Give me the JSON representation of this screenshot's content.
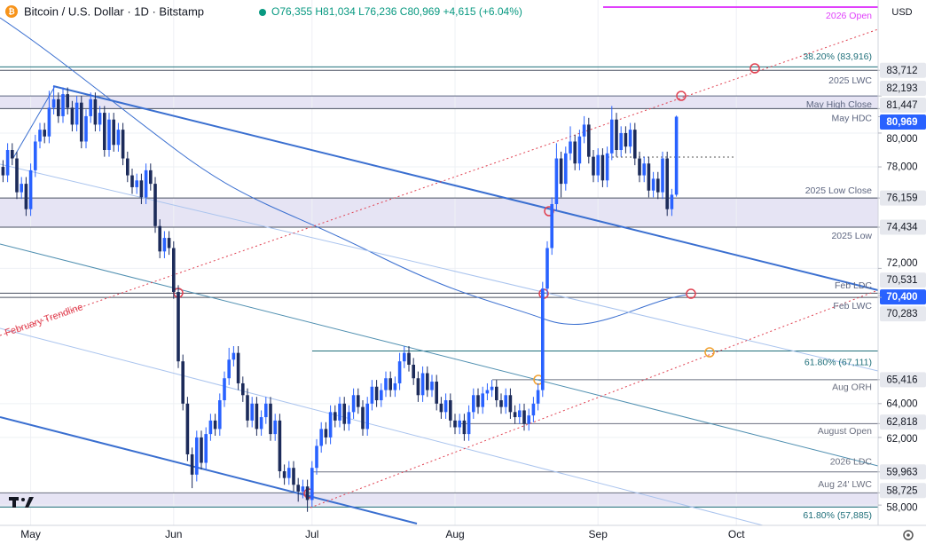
{
  "chart_data": {
    "type": "candlestick",
    "title": "Bitcoin / U.S. Dollar · 1D · Bitstamp",
    "subtitle": "O76,355 H81,034 L76,236 C80,969 +4,615 (+6.04%)",
    "ylabel": "USD",
    "trendline_label": "February Trendline",
    "categories": [
      null,
      null,
      null,
      null,
      null,
      null,
      null,
      "May",
      null,
      null,
      null,
      null,
      null,
      null,
      null,
      null,
      null,
      null,
      null,
      null,
      null,
      null,
      null,
      null,
      null,
      null,
      null,
      null,
      null,
      null,
      null,
      null,
      null,
      null,
      null,
      null,
      null,
      null,
      "Jun",
      null,
      null,
      null,
      null,
      null,
      null,
      null,
      null,
      null,
      null,
      null,
      null,
      null,
      null,
      null,
      null,
      null,
      null,
      null,
      null,
      null,
      null,
      null,
      null,
      null,
      null,
      null,
      null,
      null,
      "Jul",
      null,
      null,
      null,
      null,
      null,
      null,
      null,
      null,
      null,
      null,
      null,
      null,
      null,
      null,
      null,
      null,
      null,
      null,
      null,
      null,
      null,
      null,
      null,
      null,
      null,
      null,
      null,
      null,
      null,
      null,
      "Aug",
      null,
      null,
      null,
      null,
      null,
      null,
      null,
      null,
      null,
      null,
      null,
      null,
      null,
      null,
      null,
      null,
      null,
      null,
      null,
      null,
      null,
      null,
      null,
      null,
      null,
      null,
      null,
      null,
      null,
      null,
      "Sep",
      null,
      null,
      null,
      null,
      null,
      null,
      null,
      null,
      null,
      null,
      null,
      null,
      null,
      null,
      null,
      null,
      null,
      null,
      null,
      null,
      null,
      null,
      null,
      null,
      null,
      null,
      null,
      null,
      null,
      "Oct"
    ],
    "open": [
      77200,
      78000,
      77500,
      79000,
      78500,
      76500,
      77000,
      75500,
      77800,
      79500,
      80200,
      79800,
      81500,
      82000,
      81000,
      82300,
      81500,
      80500,
      81800,
      79500,
      81000,
      82000,
      80500,
      81200,
      79000,
      80800,
      79300,
      80200,
      78500,
      77500,
      76800,
      77200,
      76200,
      77800,
      77000,
      74500,
      73000,
      73800,
      73200,
      70600,
      66500,
      64000,
      61000,
      59800,
      62000,
      60500,
      62200,
      63000,
      62500,
      64200,
      65500,
      66600,
      67000,
      65200,
      64500,
      63000,
      64000,
      62500,
      63200,
      64000,
      62200,
      63000,
      60000,
      59600,
      60200,
      59200,
      58800,
      59100,
      58300,
      60200,
      61500,
      62500,
      62000,
      63500,
      63000,
      64000,
      62800,
      63500,
      64500,
      63800,
      62500,
      64000,
      65000,
      64200,
      64800,
      65500,
      64800,
      65200,
      66500,
      67000,
      66300,
      65500,
      64500,
      65800,
      64800,
      65300,
      64000,
      63500,
      64200,
      63000,
      62600,
      63000,
      62200,
      63500,
      64500,
      63800,
      64600,
      64800,
      65000,
      64200,
      63800,
      64500,
      63500,
      63200,
      63600,
      62800,
      63300,
      64000,
      64800,
      70800,
      73200,
      75800,
      78500,
      77000,
      78800,
      79500,
      78200,
      79800,
      80500,
      78600,
      77500,
      78700,
      77200,
      78800,
      80800,
      79000,
      80000,
      79200,
      80200,
      78500,
      77500,
      78200,
      76600,
      77300,
      76500,
      78500,
      75500,
      76355,
      null,
      null,
      null,
      null,
      null,
      null,
      null,
      null,
      null,
      null,
      null,
      null,
      null
    ],
    "high": [
      78400,
      78400,
      79400,
      79400,
      78900,
      77400,
      77400,
      78200,
      79900,
      80600,
      80600,
      82500,
      82800,
      82400,
      82700,
      82700,
      81900,
      82200,
      82200,
      81400,
      82400,
      82400,
      81600,
      81600,
      81200,
      81200,
      80600,
      80600,
      78900,
      77900,
      77600,
      77600,
      78200,
      78200,
      77400,
      74900,
      74200,
      74200,
      73600,
      71000,
      66900,
      64400,
      61400,
      62400,
      62400,
      62600,
      63400,
      63400,
      64600,
      65900,
      67300,
      67400,
      67400,
      65600,
      64900,
      64400,
      64400,
      63600,
      64400,
      64400,
      63400,
      63400,
      60400,
      60600,
      60600,
      59600,
      59500,
      59500,
      60600,
      61900,
      62900,
      62900,
      63900,
      63900,
      64400,
      64400,
      63900,
      64900,
      64900,
      64200,
      64400,
      65400,
      65400,
      65200,
      65900,
      65900,
      65600,
      67000,
      67400,
      67400,
      66700,
      65900,
      66200,
      66200,
      65700,
      65700,
      64400,
      64600,
      64600,
      63400,
      63400,
      63400,
      63900,
      64900,
      64900,
      65000,
      65200,
      65400,
      65400,
      64600,
      64900,
      64900,
      63900,
      64000,
      64000,
      63700,
      64400,
      65200,
      71200,
      73600,
      76200,
      79400,
      78900,
      79200,
      80400,
      79900,
      80200,
      81000,
      80900,
      79000,
      79100,
      79100,
      79200,
      81600,
      81200,
      80400,
      80400,
      80600,
      80600,
      78900,
      78600,
      78600,
      77700,
      77700,
      78900,
      78900,
      76700,
      81034,
      null,
      null,
      null,
      null,
      null,
      null,
      null,
      null,
      null,
      null,
      null,
      null,
      null
    ],
    "low": [
      76800,
      77100,
      77100,
      78100,
      76100,
      76100,
      75100,
      75100,
      77400,
      79100,
      79400,
      79400,
      81100,
      80600,
      80600,
      81100,
      80100,
      80100,
      79100,
      79100,
      80600,
      80100,
      80100,
      78600,
      78600,
      78900,
      78900,
      78100,
      77100,
      76400,
      76400,
      75800,
      75800,
      76600,
      74100,
      72600,
      72600,
      72800,
      70200,
      66100,
      63600,
      60600,
      59000,
      59400,
      60100,
      60100,
      61800,
      62100,
      62100,
      63800,
      65100,
      66200,
      64800,
      64100,
      62600,
      62600,
      62100,
      62100,
      62800,
      61800,
      61800,
      59600,
      59200,
      59200,
      58800,
      58200,
      58400,
      57600,
      57900,
      59800,
      61100,
      61600,
      61600,
      62600,
      62600,
      62400,
      62400,
      63100,
      63400,
      62100,
      62100,
      63600,
      63800,
      63800,
      64400,
      64400,
      64400,
      64800,
      66100,
      65900,
      65100,
      64100,
      64100,
      64400,
      64400,
      63600,
      63100,
      63100,
      62600,
      62200,
      62200,
      61800,
      61800,
      63100,
      63400,
      63400,
      64200,
      64400,
      63800,
      63400,
      63400,
      63100,
      62800,
      62800,
      62400,
      62400,
      62900,
      63600,
      64400,
      70400,
      72800,
      75400,
      76200,
      76600,
      78400,
      77800,
      77800,
      79400,
      78200,
      77100,
      77100,
      76800,
      76800,
      78400,
      78600,
      78600,
      78800,
      78800,
      78100,
      77100,
      77100,
      76200,
      76200,
      76100,
      76100,
      75100,
      75100,
      76236,
      null,
      null,
      null,
      null,
      null,
      null,
      null,
      null,
      null,
      null,
      null,
      null,
      null
    ],
    "close": [
      78000,
      77500,
      79000,
      78500,
      76500,
      77000,
      75500,
      77800,
      79500,
      80200,
      79800,
      81500,
      82000,
      81000,
      82300,
      81500,
      80500,
      81800,
      79500,
      81000,
      82000,
      80500,
      81200,
      79000,
      80800,
      79300,
      80200,
      78500,
      77500,
      76800,
      77200,
      76200,
      77800,
      77000,
      74500,
      73000,
      73800,
      73200,
      70600,
      66500,
      64000,
      61000,
      59800,
      62000,
      60500,
      62200,
      63000,
      62500,
      64200,
      65500,
      66600,
      67000,
      65200,
      64500,
      63000,
      64000,
      62500,
      63200,
      64000,
      62200,
      63000,
      60000,
      59600,
      60200,
      59200,
      58800,
      59100,
      58300,
      60200,
      61500,
      62500,
      62000,
      63500,
      63000,
      64000,
      62800,
      63500,
      64500,
      63800,
      62500,
      64000,
      65000,
      64200,
      64800,
      65500,
      64800,
      65200,
      66500,
      67000,
      66300,
      65500,
      64500,
      65800,
      64800,
      65300,
      64000,
      63500,
      64200,
      63000,
      62600,
      63000,
      62200,
      63500,
      64500,
      63800,
      64600,
      64800,
      65000,
      64200,
      63800,
      64500,
      63500,
      63200,
      63600,
      62800,
      63300,
      64000,
      64800,
      70800,
      73200,
      75800,
      78500,
      77000,
      78800,
      79500,
      78200,
      79800,
      80500,
      78600,
      77500,
      78700,
      77200,
      78800,
      80800,
      79000,
      80000,
      79200,
      80200,
      78500,
      77500,
      78200,
      76600,
      77300,
      76500,
      78500,
      75500,
      76355,
      80969,
      null,
      null,
      null,
      null,
      null,
      null,
      null,
      null,
      null,
      null,
      null,
      null,
      null
    ],
    "up_color": "#2962ff",
    "down_color": "#1c2b5a",
    "ylim": [
      56800,
      87870
    ],
    "yticks": [
      {
        "value": 58000,
        "label": "58,000"
      },
      {
        "value": 62000,
        "label": "62,000"
      },
      {
        "value": 64000,
        "label": "64,000"
      },
      {
        "value": 72000,
        "label": "72,000"
      },
      {
        "value": 78000,
        "label": "78,000"
      },
      {
        "value": 80000,
        "label": "80,000"
      }
    ],
    "grid": true,
    "levels": [
      {
        "value": 87450,
        "note": "2026 Open",
        "color": "#e040fb"
      },
      {
        "value": 83916,
        "note": "38.20% (83,916)",
        "color": "#1f6f7a"
      },
      {
        "value": 83712,
        "label": "83,712",
        "color": "#4a5060"
      },
      {
        "value": 82193,
        "label": "82,193",
        "note": "2025 LWC",
        "color": "#5d6680"
      },
      {
        "value": 81447,
        "label": "81,447",
        "note": "May High Close",
        "color": "#4a5060"
      },
      {
        "value": 80969,
        "label": "80,969",
        "note": "May HDC",
        "color": "#2962ff",
        "line": false
      },
      {
        "value": 76159,
        "label": "76,159",
        "note": "2025 Low Close",
        "color": "#4a5060"
      },
      {
        "value": 74434,
        "label": "74,434",
        "note": "2025 Low",
        "color": "#4a5060"
      },
      {
        "value": 70531,
        "label": "70,531",
        "note": "Feb LDC",
        "color": "#4a5060"
      },
      {
        "value": 70400,
        "label": "70,400",
        "color": "#2962ff",
        "line": false
      },
      {
        "value": 70283,
        "label": "70,283",
        "note": "Feb LWC",
        "color": "#4a5060"
      },
      {
        "value": 67111,
        "note": "61.80% (67,111)",
        "color": "#1f6f7a"
      },
      {
        "value": 65416,
        "label": "65,416",
        "note": "Aug ORH",
        "color": "#6b7080"
      },
      {
        "value": 62818,
        "label": "62,818",
        "note": "August Open",
        "color": "#6b7080"
      },
      {
        "value": 59963,
        "label": "59,963",
        "note": "2026 LDC",
        "color": "#6b7080"
      },
      {
        "value": 58725,
        "label": "58,725",
        "note": "Aug 24' LWC",
        "color": "#6b7080"
      },
      {
        "value": 57885,
        "note": "61.80% (57,885)",
        "color": "#1f6f7a"
      }
    ]
  }
}
